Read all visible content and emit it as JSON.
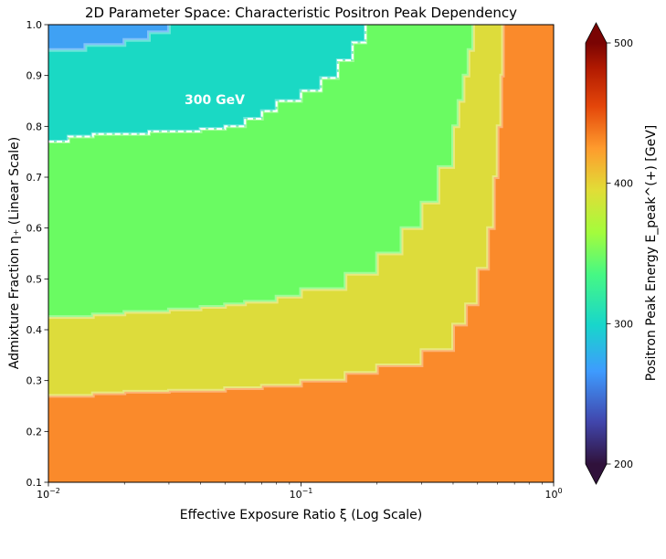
{
  "chart_data": {
    "type": "heatmap",
    "title": "2D Parameter Space: Characteristic Positron Peak Dependency",
    "xlabel": "Effective Exposure Ratio ξ (Log Scale)",
    "ylabel": "Admixture Fraction η₊ (Linear Scale)",
    "colorbar_label": "Positron Peak Energy E_peak^(+) [GeV]",
    "x_scale": "log",
    "xlim": [
      0.01,
      1
    ],
    "ylim": [
      0.1,
      1.0
    ],
    "x_ticks": [
      {
        "base": "10",
        "exp": "−2"
      },
      {
        "base": "10",
        "exp": "−1"
      },
      {
        "base": "10",
        "exp": "0"
      }
    ],
    "y_ticks": [
      "0.1",
      "0.2",
      "0.3",
      "0.4",
      "0.5",
      "0.6",
      "0.7",
      "0.8",
      "0.9",
      "1.0"
    ],
    "colorbar_range": [
      200,
      500
    ],
    "colorbar_ticks": [
      "200",
      "300",
      "400",
      "500"
    ],
    "annotation": "300 GeV",
    "regions": [
      {
        "level": 275,
        "color": "#3fa1f4",
        "boundary": [
          [
            0.01,
            0.95
          ],
          [
            0.014,
            0.96
          ],
          [
            0.02,
            0.97
          ],
          [
            0.025,
            0.985
          ],
          [
            0.03,
            1.0
          ]
        ]
      },
      {
        "level": 305,
        "color": "#1ad9c4",
        "boundary": [
          [
            0.01,
            0.77
          ],
          [
            0.012,
            0.78
          ],
          [
            0.015,
            0.785
          ],
          [
            0.02,
            0.785
          ],
          [
            0.025,
            0.79
          ],
          [
            0.03,
            0.79
          ],
          [
            0.04,
            0.795
          ],
          [
            0.05,
            0.8
          ],
          [
            0.06,
            0.815
          ],
          [
            0.07,
            0.83
          ],
          [
            0.08,
            0.85
          ],
          [
            0.1,
            0.87
          ],
          [
            0.12,
            0.895
          ],
          [
            0.14,
            0.93
          ],
          [
            0.16,
            0.965
          ],
          [
            0.18,
            1.0
          ]
        ]
      },
      {
        "level": 340,
        "color": "#6afb62",
        "boundary": [
          [
            0.01,
            0.425
          ],
          [
            0.015,
            0.43
          ],
          [
            0.02,
            0.435
          ],
          [
            0.03,
            0.44
          ],
          [
            0.04,
            0.445
          ],
          [
            0.05,
            0.45
          ],
          [
            0.06,
            0.455
          ],
          [
            0.08,
            0.465
          ],
          [
            0.1,
            0.48
          ],
          [
            0.15,
            0.51
          ],
          [
            0.2,
            0.55
          ],
          [
            0.25,
            0.6
          ],
          [
            0.3,
            0.65
          ],
          [
            0.35,
            0.72
          ],
          [
            0.4,
            0.8
          ],
          [
            0.42,
            0.85
          ],
          [
            0.44,
            0.9
          ],
          [
            0.46,
            0.95
          ],
          [
            0.48,
            1.0
          ]
        ]
      },
      {
        "level": 370,
        "color": "#dddc3b",
        "boundary": [
          [
            0.01,
            0.27
          ],
          [
            0.015,
            0.275
          ],
          [
            0.02,
            0.278
          ],
          [
            0.03,
            0.28
          ],
          [
            0.05,
            0.285
          ],
          [
            0.07,
            0.29
          ],
          [
            0.1,
            0.3
          ],
          [
            0.15,
            0.315
          ],
          [
            0.2,
            0.33
          ],
          [
            0.3,
            0.36
          ],
          [
            0.4,
            0.41
          ],
          [
            0.45,
            0.45
          ],
          [
            0.5,
            0.52
          ],
          [
            0.55,
            0.6
          ],
          [
            0.58,
            0.7
          ],
          [
            0.6,
            0.8
          ],
          [
            0.62,
            0.9
          ],
          [
            0.63,
            1.0
          ]
        ]
      },
      {
        "level": 420,
        "color": "#fa8a2b",
        "boundary": "rest"
      }
    ],
    "dashed_contour": {
      "level": 300,
      "color": "#ffffff"
    }
  }
}
